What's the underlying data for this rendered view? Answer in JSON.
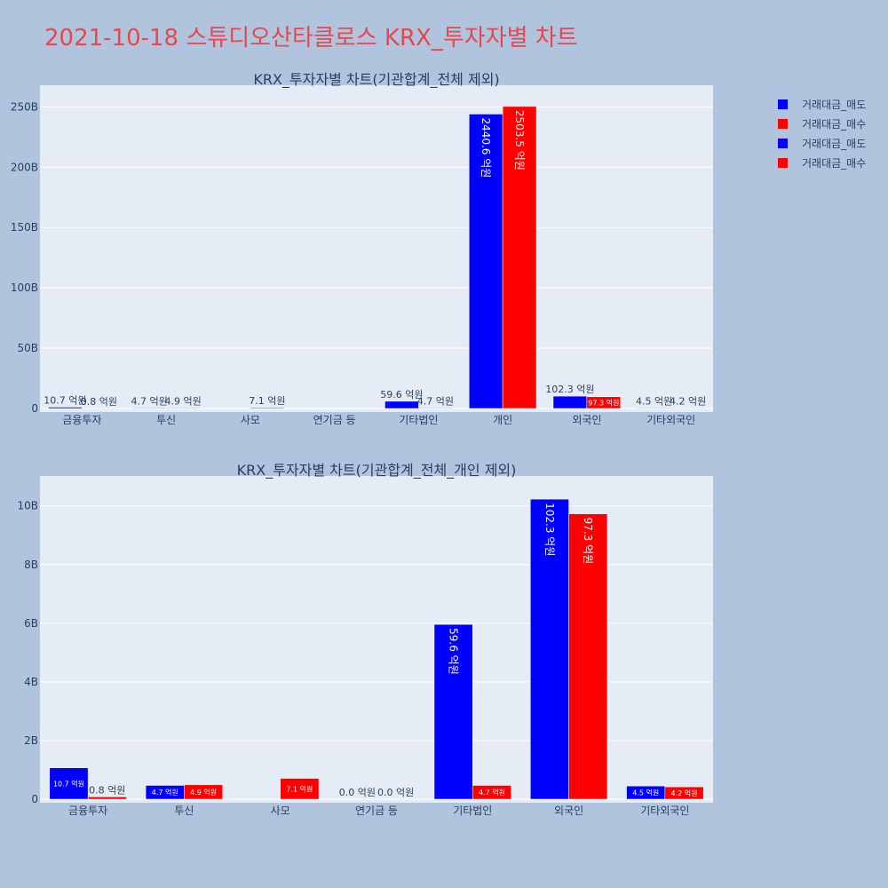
{
  "page_title": "2021-10-18 스튜디오산타클로스 KRX_투자자별 차트",
  "colors": {
    "sell": "#0000ff",
    "buy": "#ff0000",
    "plot_bg": "#e5ecf6",
    "page_bg": "#b0c4de",
    "title": "#e8474f"
  },
  "legend": [
    {
      "label": "거래대금_매도",
      "color": "#0000ff"
    },
    {
      "label": "거래대금_매수",
      "color": "#ff0000"
    },
    {
      "label": "거래대금_매도",
      "color": "#0000ff"
    },
    {
      "label": "거래대금_매수",
      "color": "#ff0000"
    }
  ],
  "chart_data": [
    {
      "type": "bar",
      "title": "KRX_투자자별 차트(기관합계_전체 제외)",
      "categories": [
        "금융투자",
        "투신",
        "사모",
        "연기금 등",
        "기타법인",
        "개인",
        "외국인",
        "기타외국인"
      ],
      "ylim": [
        0,
        265
      ],
      "yticks": [
        0,
        50,
        100,
        150,
        200,
        250
      ],
      "ytick_labels": [
        "0",
        "50B",
        "100B",
        "150B",
        "200B",
        "250B"
      ],
      "grid": true,
      "legend_position": "right",
      "series": [
        {
          "name": "거래대금_매도",
          "color": "#0000ff",
          "values": [
            1.07,
            0.47,
            0,
            0,
            5.96,
            244.06,
            10.23,
            0.45
          ],
          "labels": [
            "10.7 억원",
            "4.7 억원",
            "",
            "",
            "59.6 억원",
            "2440.6 억원",
            "102.3 억원",
            "4.5 억원"
          ]
        },
        {
          "name": "거래대금_매수",
          "color": "#ff0000",
          "values": [
            0.08,
            0.49,
            0.71,
            0,
            0.47,
            250.35,
            9.73,
            0.42
          ],
          "labels": [
            "0.8 억원",
            "4.9 억원",
            "7.1 억원",
            "",
            "4.7 억원",
            "2503.5 억원",
            "97.3 억원",
            "4.2 억원"
          ]
        }
      ]
    },
    {
      "type": "bar",
      "title": "KRX_투자자별 차트(기관합계_전체_개인 제외)",
      "categories": [
        "금융투자",
        "투신",
        "사모",
        "연기금 등",
        "기타법인",
        "외국인",
        "기타외국인"
      ],
      "ylim": [
        0,
        10.9
      ],
      "yticks": [
        0,
        2,
        4,
        6,
        8,
        10
      ],
      "ytick_labels": [
        "0",
        "2B",
        "4B",
        "6B",
        "8B",
        "10B"
      ],
      "grid": true,
      "series": [
        {
          "name": "거래대금_매도",
          "color": "#0000ff",
          "values": [
            1.07,
            0.47,
            0,
            0,
            5.96,
            10.23,
            0.45
          ],
          "labels": [
            "10.7 억원",
            "4.7 억원",
            "",
            "0.0 억원",
            "59.6 억원",
            "102.3 억원",
            "4.5 억원"
          ]
        },
        {
          "name": "거래대금_매수",
          "color": "#ff0000",
          "values": [
            0.08,
            0.49,
            0.71,
            0,
            0.47,
            9.73,
            0.42
          ],
          "labels": [
            "0.8 억원",
            "4.9 억원",
            "7.1 억원",
            "0.0 억원",
            "4.7 억원",
            "97.3 억원",
            "4.2 억원"
          ]
        }
      ]
    }
  ]
}
